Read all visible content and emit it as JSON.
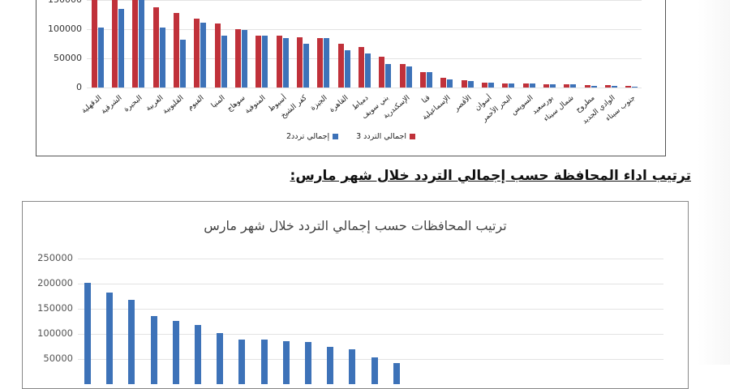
{
  "heading": "ترتيب اداء المحافظة حسب إجمالي التردد خلال شهر مارس:",
  "chart_data": [
    {
      "type": "bar",
      "title": "",
      "xlabel": "",
      "ylabel": "",
      "ylim": [
        0,
        150000
      ],
      "yticks": [
        "150000",
        "100000",
        "50000",
        "0"
      ],
      "grid": true,
      "legend_position": "bottom",
      "categories": [
        "الدقهلية",
        "الشرقية",
        "البحيرة",
        "الغربية",
        "القليوبية",
        "الفيوم",
        "المنيا",
        "سوهاج",
        "المنوفية",
        "أسيوط",
        "كفر الشيخ",
        "الجيزة",
        "القاهرة",
        "دمياط",
        "بني سويف",
        "الإسكندرية",
        "قنا",
        "الإسماعيلية",
        "الأقصر",
        "أسوان",
        "البحر الأحمر",
        "السويس",
        "بورسعيد",
        "شمال سيناء",
        "مطروح",
        "الوادي الجديد",
        "جنوب سيناء"
      ],
      "series": [
        {
          "name": "اجمالي التردد 3",
          "color": "#c0313a",
          "values": [
            160000,
            158000,
            155000,
            137000,
            128000,
            118000,
            110000,
            100000,
            89000,
            89000,
            86000,
            85000,
            75000,
            70000,
            53000,
            40000,
            27000,
            17000,
            12000,
            8000,
            7000,
            7000,
            6000,
            5000,
            4000,
            4000,
            3000
          ]
        },
        {
          "name": "إجمالي تردد2",
          "color": "#3d72b8",
          "values": [
            103000,
            135000,
            155000,
            103000,
            82000,
            111000,
            89000,
            99000,
            89000,
            85000,
            75000,
            85000,
            64000,
            58000,
            40000,
            36000,
            26000,
            14000,
            11000,
            8000,
            7000,
            7000,
            6000,
            5000,
            3000,
            3000,
            2000
          ]
        }
      ]
    },
    {
      "type": "bar",
      "title": "ترتيب المحافظات حسب إجمالي التردد خلال شهر مارس",
      "xlabel": "",
      "ylabel": "",
      "ylim": [
        0,
        250000
      ],
      "yticks": [
        "250000",
        "200000",
        "150000",
        "100000",
        "50000"
      ],
      "grid": true,
      "series": [
        {
          "name": "إجمالي التردد",
          "color": "#3d72b8",
          "values": [
            202000,
            182000,
            168000,
            135000,
            126000,
            118000,
            101000,
            88000,
            88000,
            85000,
            84000,
            74000,
            70000,
            53000,
            42000
          ]
        }
      ]
    }
  ],
  "chart1": {
    "yticks": [
      "150000",
      "100000",
      "50000",
      "0"
    ],
    "legend": {
      "red": "اجمالي التردد 3",
      "blue": "إجمالي تردد2"
    }
  },
  "chart2": {
    "title": "ترتيب المحافظات حسب إجمالي التردد خلال شهر مارس",
    "yticks": [
      "250000",
      "200000",
      "150000",
      "100000",
      "50000"
    ]
  }
}
